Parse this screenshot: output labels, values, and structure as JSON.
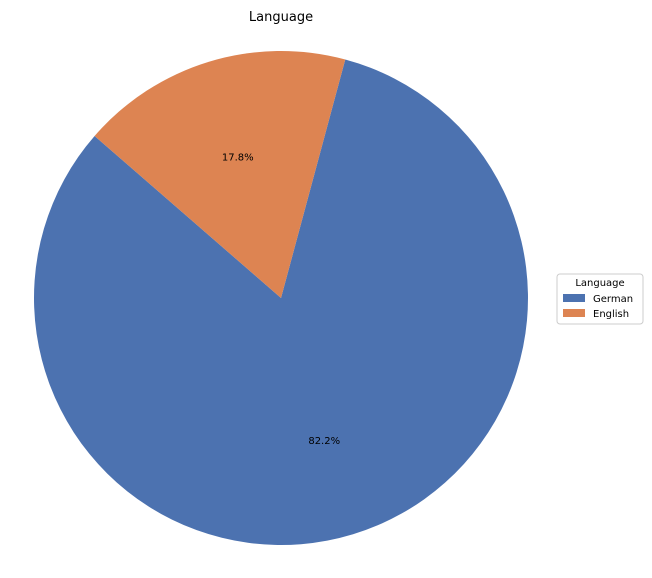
{
  "chart_data": {
    "type": "pie",
    "title": "Language",
    "categories": [
      "German",
      "English"
    ],
    "values": [
      82.2,
      17.8
    ],
    "labels": [
      "82.2%",
      "17.8%"
    ],
    "colors": [
      "#4c72b0",
      "#dd8452"
    ],
    "legend": {
      "title": "Language",
      "placement": "right",
      "entries": [
        "German",
        "English"
      ]
    }
  }
}
